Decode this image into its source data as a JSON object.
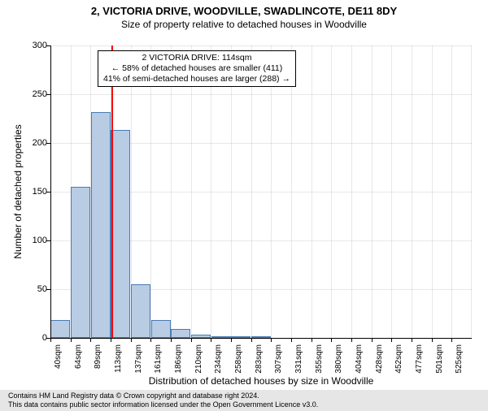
{
  "header": {
    "address": "2, VICTORIA DRIVE, WOODVILLE, SWADLINCOTE, DE11 8DY",
    "subtitle": "Size of property relative to detached houses in Woodville"
  },
  "chart": {
    "type": "histogram",
    "ylim": [
      0,
      300
    ],
    "ytick_step": 50,
    "ylabel": "Number of detached properties",
    "xlabel": "Distribution of detached houses by size in Woodville",
    "bar_color": "#b8cce4",
    "bar_border_color": "#4a7ab5",
    "background_color": "#ffffff",
    "grid_color": "#808080",
    "x_categories": [
      "40sqm",
      "64sqm",
      "89sqm",
      "113sqm",
      "137sqm",
      "161sqm",
      "186sqm",
      "210sqm",
      "234sqm",
      "258sqm",
      "283sqm",
      "307sqm",
      "331sqm",
      "355sqm",
      "380sqm",
      "404sqm",
      "428sqm",
      "452sqm",
      "477sqm",
      "501sqm",
      "525sqm"
    ],
    "values": [
      18,
      155,
      232,
      213,
      55,
      18,
      9,
      3,
      2,
      2,
      2,
      0,
      0,
      0,
      0,
      0,
      0,
      0,
      0,
      0,
      0
    ],
    "marker": {
      "x_value": "114sqm",
      "x_position_index": 3.04,
      "color": "#ff0000"
    },
    "annotation": {
      "line1": "2 VICTORIA DRIVE: 114sqm",
      "line2": "← 58% of detached houses are smaller (411)",
      "line3": "41% of semi-detached houses are larger (288) →",
      "border_color": "#000000",
      "background": "#ffffff"
    }
  },
  "footer": {
    "line1": "Contains HM Land Registry data © Crown copyright and database right 2024.",
    "line2": "This data contains public sector information licensed under the Open Government Licence v3.0."
  }
}
